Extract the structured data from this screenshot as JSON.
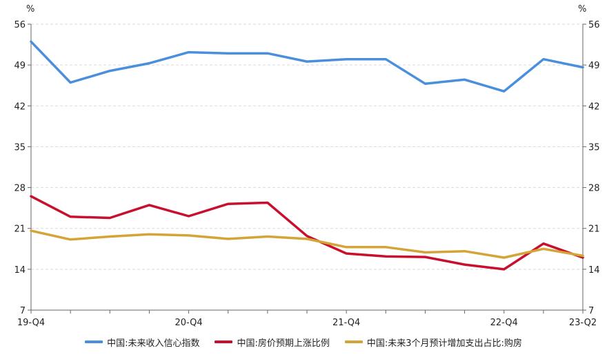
{
  "chart_data": {
    "type": "line",
    "y_unit": "%",
    "ylim": [
      7,
      56
    ],
    "yticks": [
      7,
      14,
      21,
      28,
      35,
      42,
      49,
      56
    ],
    "grid": true,
    "legend_position": "bottom",
    "categories": [
      "19-Q4",
      "20-Q1",
      "20-Q2",
      "20-Q3",
      "20-Q4",
      "21-Q1",
      "21-Q2",
      "21-Q3",
      "21-Q4",
      "22-Q1",
      "22-Q2",
      "22-Q3",
      "22-Q4",
      "23-Q1",
      "23-Q2"
    ],
    "x_tick_labels": [
      {
        "index": 0,
        "label": "19-Q4"
      },
      {
        "index": 4,
        "label": "20-Q4"
      },
      {
        "index": 8,
        "label": "21-Q4"
      },
      {
        "index": 12,
        "label": "22-Q4"
      },
      {
        "index": 14,
        "label": "23-Q2"
      }
    ],
    "series": [
      {
        "name": "中国:未来收入信心指数",
        "color": "#4a8fdc",
        "values": [
          53.0,
          46.0,
          48.0,
          49.3,
          51.2,
          51.0,
          51.0,
          49.6,
          50.0,
          50.0,
          45.8,
          46.5,
          44.5,
          50.0,
          48.6
        ]
      },
      {
        "name": "中国:房价预期上涨比例",
        "color": "#c8102e",
        "values": [
          26.5,
          23.0,
          22.8,
          25.0,
          23.1,
          25.2,
          25.4,
          19.7,
          16.7,
          16.2,
          16.1,
          14.8,
          14.0,
          18.4,
          16.0
        ]
      },
      {
        "name": "中国:未来3个月预计增加支出占比:购房",
        "color": "#d4a437",
        "values": [
          20.6,
          19.1,
          19.6,
          20.0,
          19.8,
          19.2,
          19.6,
          19.2,
          17.8,
          17.8,
          16.9,
          17.1,
          16.0,
          17.5,
          16.3
        ]
      }
    ]
  }
}
